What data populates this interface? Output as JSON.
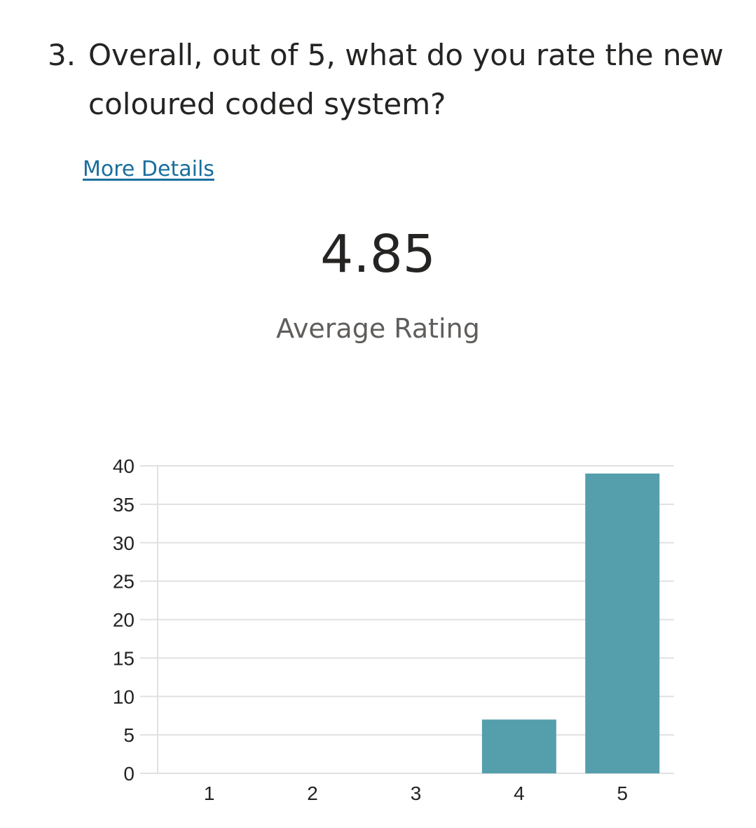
{
  "question": {
    "number": "3.",
    "text": "Overall, out of 5, what do you rate the new coloured coded system?"
  },
  "more_details_label": "More Details",
  "summary": {
    "average_value": "4.85",
    "average_label": "Average Rating"
  },
  "colors": {
    "bar": "#559fad",
    "grid": "#e1e1e1"
  },
  "chart_data": {
    "type": "bar",
    "categories": [
      "1",
      "2",
      "3",
      "4",
      "5"
    ],
    "values": [
      0,
      0,
      0,
      7,
      39
    ],
    "ylim": [
      0,
      40
    ],
    "yticks": [
      0,
      5,
      10,
      15,
      20,
      25,
      30,
      35,
      40
    ],
    "grid": true,
    "legend": "none"
  }
}
